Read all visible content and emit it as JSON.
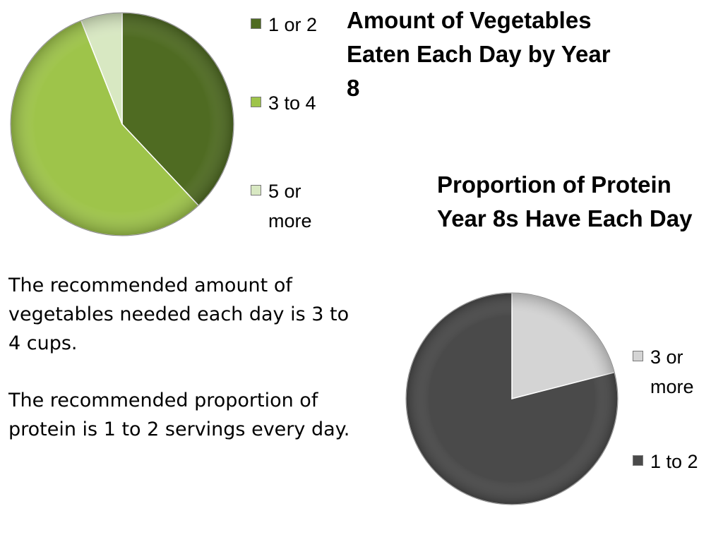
{
  "chart_data": [
    {
      "type": "pie",
      "title": "Amount of Vegetables Eaten Each Day by Year 8",
      "categories": [
        "1 or 2",
        "3 to 4",
        "5 or more"
      ],
      "values": [
        38,
        56,
        6
      ],
      "colors": [
        "#4f6b22",
        "#9ec44a",
        "#d8e8c2"
      ],
      "legend_position": "right"
    },
    {
      "type": "pie",
      "title": "Proportion of Protein Year 8s Have Each Day",
      "categories": [
        "3 or more",
        "1 to 2"
      ],
      "values": [
        21,
        79
      ],
      "colors": [
        "#d4d4d4",
        "#4a4a4a"
      ],
      "legend_position": "right"
    }
  ],
  "notes": {
    "vegetables": "The recommended amount  of vegetables needed each day is 3 to 4 cups.",
    "protein": "The recommended proportion of protein is 1 to 2 servings every day."
  }
}
